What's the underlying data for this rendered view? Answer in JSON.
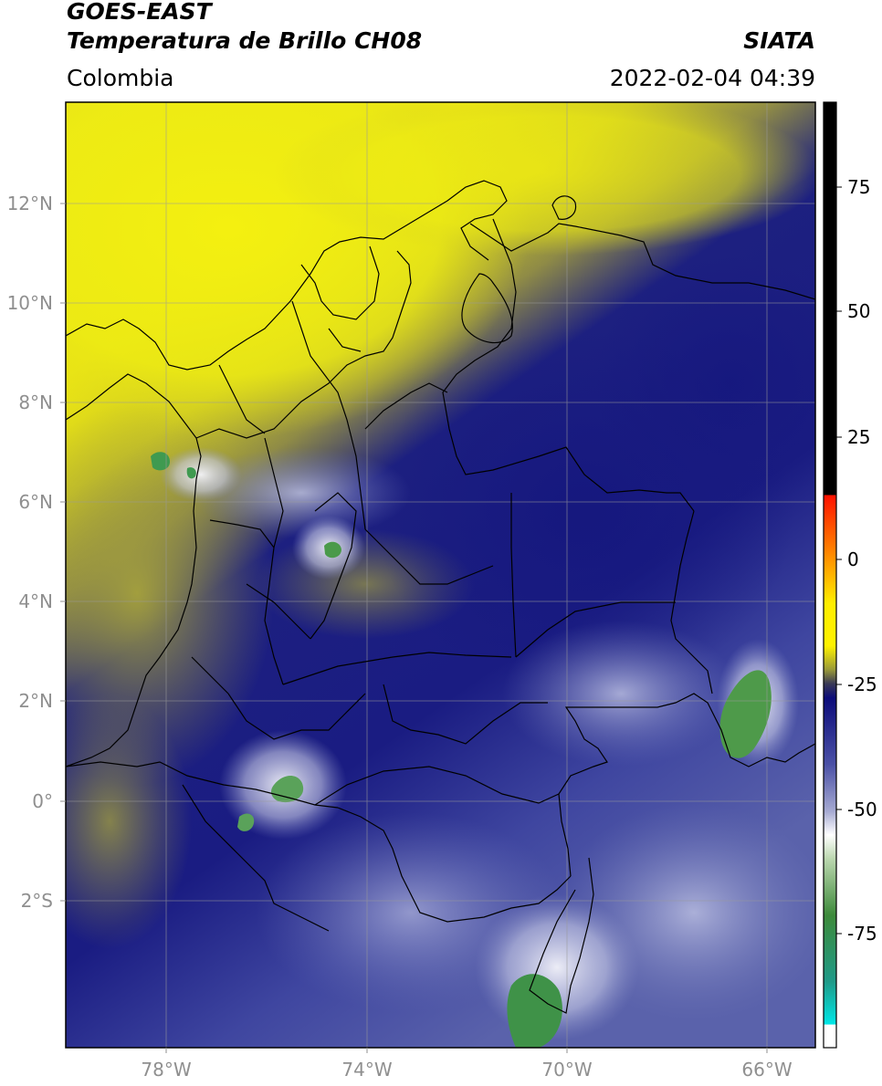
{
  "header": {
    "title_line1": "GOES-EAST",
    "title_line2": "Temperatura de Brillo CH08",
    "source": "SIATA",
    "region": "Colombia",
    "timestamp": "2022-02-04 04:39"
  },
  "axes": {
    "lat_labels": [
      "12°N",
      "10°N",
      "8°N",
      "6°N",
      "4°N",
      "2°N",
      "0°",
      "2°S"
    ],
    "lon_labels": [
      "78°W",
      "74°W",
      "70°W",
      "66°W"
    ]
  },
  "colorbar": {
    "ticks": [
      "75",
      "50",
      "25",
      "0",
      "-25",
      "-50",
      "-75"
    ],
    "range": [
      -95,
      90
    ]
  },
  "colors": {
    "warm_yellow": "#f0ec10",
    "olive": "#a8a838",
    "deep_blue": "#16187e",
    "mid_blue": "#4b53a3",
    "light_lavender": "#c8cce8",
    "cloud_green": "#4f9a4b",
    "border_line": "#000000",
    "grid_line": "#9a9a9a"
  }
}
